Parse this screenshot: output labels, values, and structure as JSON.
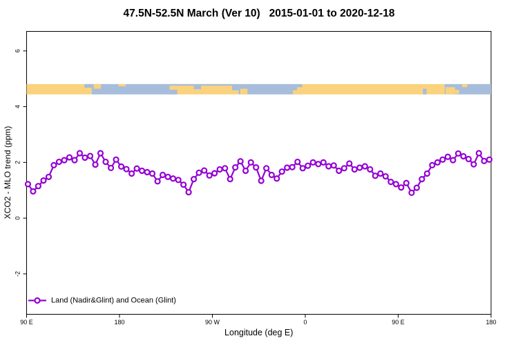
{
  "title": "47.5N-52.5N March (Ver 10)   2015-01-01 to 2020-12-18",
  "chart_data": {
    "type": "line",
    "title": "47.5N-52.5N March (Ver 10)   2015-01-01 to 2020-12-18",
    "xlabel": "Longitude (deg E)",
    "ylabel": "XCO2 - MLO trend (ppm)",
    "xlim": [
      90,
      540
    ],
    "ylim": [
      -3.45,
      6.7
    ],
    "grid": false,
    "x_ticks": [
      {
        "value": 90,
        "label": "90 E"
      },
      {
        "value": 180,
        "label": "180"
      },
      {
        "value": 270,
        "label": "90 W"
      },
      {
        "value": 360,
        "label": "0"
      },
      {
        "value": 450,
        "label": "90 E"
      },
      {
        "value": 540,
        "label": "180"
      }
    ],
    "y_ticks": [
      {
        "value": -2,
        "label": "-2"
      },
      {
        "value": 0,
        "label": "0"
      },
      {
        "value": 2,
        "label": "2"
      },
      {
        "value": 4,
        "label": "4"
      },
      {
        "value": 6,
        "label": "6"
      }
    ],
    "legend": {
      "position": "bottom-left",
      "entries": [
        {
          "label": "Land (Nadir&Glint) and Ocean (Glint)",
          "marker": "open-circle-line",
          "color": "#9400D3"
        }
      ]
    },
    "series": [
      {
        "name": "Land (Nadir&Glint) and Ocean (Glint)",
        "color": "#9400D3",
        "marker": "open-circle",
        "marker_fill": "#ffffff",
        "x": [
          91.3,
          96.3,
          101.3,
          106.4,
          111.4,
          116.4,
          121.4,
          126.5,
          131.5,
          136.5,
          141.5,
          146.5,
          151.6,
          156.6,
          161.6,
          166.6,
          171.7,
          176.7,
          181.7,
          186.7,
          191.8,
          196.8,
          201.8,
          206.8,
          211.8,
          216.9,
          221.9,
          226.9,
          231.9,
          237.0,
          242.0,
          247.0,
          252.0,
          257.0,
          262.1,
          267.1,
          272.1,
          277.1,
          282.2,
          287.2,
          292.2,
          297.2,
          302.2,
          307.3,
          312.3,
          317.3,
          322.3,
          327.4,
          332.4,
          337.4,
          342.4,
          347.4,
          352.5,
          357.5,
          362.5,
          367.5,
          372.6,
          377.6,
          382.6,
          387.6,
          392.6,
          397.7,
          402.7,
          407.7,
          412.7,
          417.8,
          422.8,
          427.8,
          432.8,
          437.8,
          442.9,
          447.9,
          452.9,
          457.9,
          463.0,
          468.0,
          473.0,
          478.0,
          483.0,
          488.1,
          493.1,
          498.1,
          503.1,
          508.2,
          513.2,
          518.2,
          523.2,
          528.2,
          533.3,
          538.3
        ],
        "y": [
          1.22,
          0.96,
          1.15,
          1.35,
          1.48,
          1.9,
          2.02,
          2.08,
          2.18,
          2.08,
          2.33,
          2.17,
          2.23,
          1.92,
          2.33,
          2.02,
          1.8,
          2.1,
          1.85,
          1.76,
          1.6,
          1.78,
          1.7,
          1.65,
          1.6,
          1.32,
          1.55,
          1.48,
          1.42,
          1.37,
          1.2,
          0.93,
          1.4,
          1.63,
          1.71,
          1.53,
          1.61,
          1.75,
          1.79,
          1.4,
          1.82,
          2.04,
          1.7,
          2.0,
          1.82,
          1.34,
          1.79,
          1.55,
          1.42,
          1.67,
          1.81,
          1.83,
          2.02,
          1.79,
          1.88,
          2.0,
          1.94,
          2.0,
          1.86,
          1.89,
          1.7,
          1.79,
          1.96,
          1.75,
          1.81,
          1.86,
          1.75,
          1.52,
          1.6,
          1.5,
          1.3,
          1.22,
          1.1,
          1.26,
          0.91,
          1.09,
          1.4,
          1.6,
          1.9,
          2.0,
          2.1,
          2.2,
          2.08,
          2.32,
          2.22,
          2.12,
          1.93,
          2.33,
          2.05,
          2.1
        ]
      }
    ],
    "land_ocean_band": {
      "description": "land/ocean strip drawn across the plot",
      "value_low": 4.44,
      "value_high": 4.81,
      "land_color": "#FBD27D",
      "ocean_color": "#A6BDDB",
      "segments": [
        {
          "from": 90,
          "to": 153,
          "type": "land"
        },
        {
          "from": 153,
          "to": 228.5,
          "type": "ocean"
        },
        {
          "from": 228.5,
          "to": 295.5,
          "type": "land"
        },
        {
          "from": 295.5,
          "to": 357,
          "type": "ocean"
        },
        {
          "from": 357,
          "to": 495,
          "type": "land"
        },
        {
          "from": 495,
          "to": 540,
          "type": "ocean"
        }
      ],
      "coastline_patches": [
        {
          "from": 146,
          "to": 153,
          "type": "ocean",
          "y0": 0,
          "y1": 0.35
        },
        {
          "from": 155,
          "to": 162,
          "type": "land",
          "y0": 0,
          "y1": 0.45
        },
        {
          "from": 179,
          "to": 186,
          "type": "land",
          "y0": 0,
          "y1": 0.22
        },
        {
          "from": 228.5,
          "to": 295.5,
          "type": "ocean",
          "y0": 0,
          "y1": 0.15
        },
        {
          "from": 228.5,
          "to": 236,
          "type": "ocean",
          "y0": 0.55,
          "y1": 1
        },
        {
          "from": 252,
          "to": 259,
          "type": "ocean",
          "y0": 0.15,
          "y1": 0.5
        },
        {
          "from": 289,
          "to": 295.5,
          "type": "ocean",
          "y0": 0.15,
          "y1": 0.6
        },
        {
          "from": 297,
          "to": 304,
          "type": "land",
          "y0": 0.45,
          "y1": 1
        },
        {
          "from": 348,
          "to": 357,
          "type": "land",
          "y0": 0.6,
          "y1": 1
        },
        {
          "from": 352,
          "to": 357,
          "type": "land",
          "y0": 0.3,
          "y1": 0.6
        },
        {
          "from": 474,
          "to": 477.5,
          "type": "ocean",
          "y0": 0.45,
          "y1": 1
        },
        {
          "from": 496,
          "to": 505,
          "type": "land",
          "y0": 0.3,
          "y1": 1
        },
        {
          "from": 505,
          "to": 509,
          "type": "land",
          "y0": 0.55,
          "y1": 0.95
        },
        {
          "from": 512,
          "to": 517,
          "type": "land",
          "y0": 0,
          "y1": 0.3
        }
      ]
    }
  }
}
